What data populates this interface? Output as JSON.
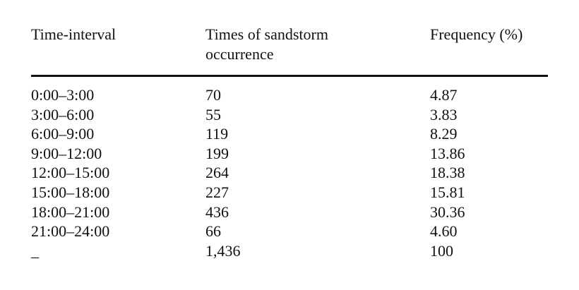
{
  "table": {
    "header": [
      "Time-interval",
      "Times of sandstorm occurrence",
      "Frequency (%)"
    ],
    "rows": [
      [
        "0:00–3:00",
        "70",
        "4.87"
      ],
      [
        "3:00–6:00",
        "55",
        "3.83"
      ],
      [
        "6:00–9:00",
        "119",
        "8.29"
      ],
      [
        "9:00–12:00",
        "199",
        "13.86"
      ],
      [
        "12:00–15:00",
        "264",
        "18.38"
      ],
      [
        "15:00–18:00",
        "227",
        "15.81"
      ],
      [
        "18:00–21:00",
        "436",
        "30.36"
      ],
      [
        "21:00–24:00",
        "66",
        "4.60"
      ],
      [
        "_",
        "1,436",
        "100"
      ]
    ]
  }
}
